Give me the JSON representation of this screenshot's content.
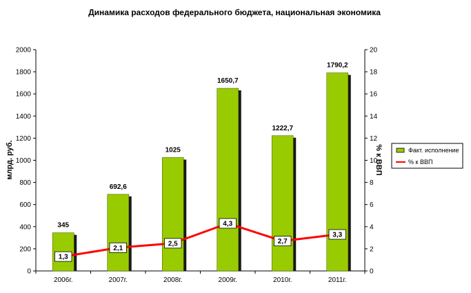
{
  "chart_data": {
    "type": "bar",
    "title": "Динамика расходов федерального бюджета, национальная экономика",
    "categories": [
      "2006г.",
      "2007г.",
      "2008г.",
      "2009г.",
      "2010г.",
      "2011г."
    ],
    "series": [
      {
        "name": "Факт. исполнение",
        "type": "bar",
        "axis": "left",
        "color": "#99cc00",
        "values": [
          345,
          692.6,
          1025,
          1650.7,
          1222.7,
          1790.2
        ],
        "labels": [
          "345",
          "692,6",
          "1025",
          "1650,7",
          "1222,7",
          "1790,2"
        ]
      },
      {
        "name": "% к ВВП",
        "type": "line",
        "axis": "right",
        "color": "#ff0000",
        "values": [
          1.3,
          2.1,
          2.5,
          4.3,
          2.7,
          3.3
        ],
        "labels": [
          "1,3",
          "2,1",
          "2,5",
          "4,3",
          "2,7",
          "3,3"
        ]
      }
    ],
    "ylabel": "млрд. руб.",
    "ylim": [
      0,
      2000
    ],
    "yticks": [
      "0",
      "200",
      "400",
      "600",
      "800",
      "1000",
      "1200",
      "1400",
      "1600",
      "1800",
      "2000"
    ],
    "y2label": "% к ВВП",
    "y2lim": [
      0,
      20
    ],
    "y2ticks": [
      "0",
      "2",
      "4",
      "6",
      "8",
      "10",
      "12",
      "14",
      "16",
      "18",
      "20"
    ],
    "grid": false,
    "legend": "right"
  }
}
